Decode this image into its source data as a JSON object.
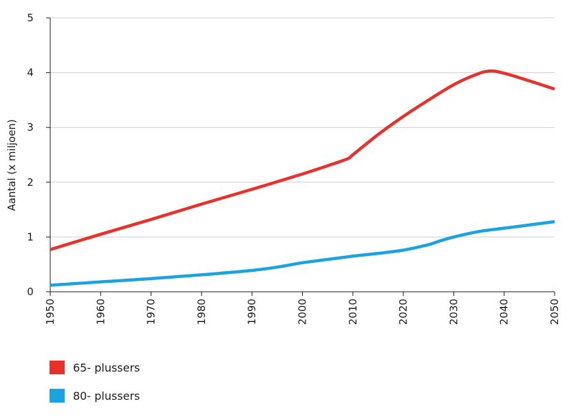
{
  "chart_data": {
    "type": "line",
    "ylabel": "Aantal (x miljoen)",
    "xlabel": "",
    "xlim": [
      1950,
      2050
    ],
    "ylim": [
      0,
      5
    ],
    "x_ticks": [
      "1950",
      "1960",
      "1970",
      "1980",
      "1990",
      "2000",
      "2010",
      "2020",
      "2030",
      "2040",
      "2050"
    ],
    "y_ticks": [
      "0",
      "1",
      "2",
      "3",
      "4",
      "5"
    ],
    "grid": "horizontal",
    "legend_position": "bottom-left",
    "series": [
      {
        "name": "65- plussers",
        "color": "#e8312a",
        "x": [
          1950,
          1960,
          1970,
          1980,
          1990,
          2000,
          2005,
          2009,
          2010,
          2015,
          2020,
          2025,
          2030,
          2034,
          2037,
          2040,
          2045,
          2050
        ],
        "y": [
          0.77,
          1.05,
          1.32,
          1.6,
          1.87,
          2.15,
          2.3,
          2.43,
          2.5,
          2.87,
          3.2,
          3.5,
          3.78,
          3.95,
          4.03,
          3.99,
          3.85,
          3.7
        ]
      },
      {
        "name": "80- plussers",
        "color": "#1aa3e0",
        "x": [
          1950,
          1960,
          1970,
          1980,
          1990,
          1995,
          2000,
          2005,
          2010,
          2015,
          2020,
          2025,
          2027,
          2030,
          2035,
          2040,
          2045,
          2050
        ],
        "y": [
          0.12,
          0.18,
          0.24,
          0.31,
          0.39,
          0.45,
          0.53,
          0.59,
          0.65,
          0.7,
          0.76,
          0.86,
          0.92,
          1.0,
          1.1,
          1.16,
          1.22,
          1.28
        ]
      }
    ]
  }
}
